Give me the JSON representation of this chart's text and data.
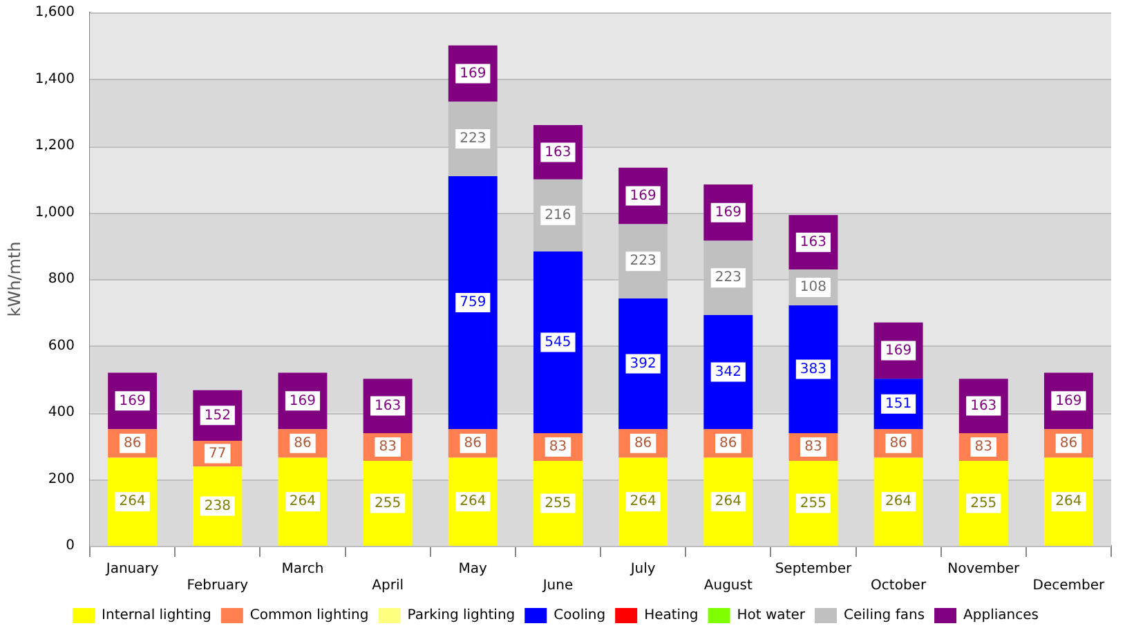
{
  "chart_data": {
    "type": "bar",
    "stacked": true,
    "ylabel": "kWh/mth",
    "categories": [
      "January",
      "February",
      "March",
      "April",
      "May",
      "June",
      "July",
      "August",
      "September",
      "October",
      "November",
      "December"
    ],
    "series": [
      {
        "name": "Internal lighting",
        "color": "#ffff00",
        "values": [
          264,
          238,
          264,
          255,
          264,
          255,
          264,
          264,
          255,
          264,
          255,
          264
        ]
      },
      {
        "name": "Common lighting",
        "color": "#ff7f50",
        "values": [
          86,
          77,
          86,
          83,
          86,
          83,
          86,
          86,
          83,
          86,
          83,
          86
        ]
      },
      {
        "name": "Parking lighting",
        "color": "#ffff80",
        "values": [
          null,
          null,
          null,
          null,
          null,
          null,
          null,
          null,
          null,
          null,
          null,
          null
        ]
      },
      {
        "name": "Cooling",
        "color": "#0000ff",
        "values": [
          null,
          null,
          null,
          null,
          759,
          545,
          392,
          342,
          383,
          151,
          null,
          null
        ]
      },
      {
        "name": "Heating",
        "color": "#ff0000",
        "values": [
          null,
          null,
          null,
          null,
          null,
          null,
          null,
          null,
          null,
          null,
          null,
          null
        ]
      },
      {
        "name": "Hot water",
        "color": "#80ff00",
        "values": [
          null,
          null,
          null,
          null,
          null,
          null,
          null,
          null,
          null,
          null,
          null,
          null
        ]
      },
      {
        "name": "Ceiling fans",
        "color": "#c0c0c0",
        "values": [
          null,
          null,
          null,
          null,
          223,
          216,
          223,
          223,
          108,
          null,
          null,
          null
        ]
      },
      {
        "name": "Appliances",
        "color": "#800080",
        "values": [
          169,
          152,
          169,
          163,
          169,
          163,
          169,
          169,
          163,
          169,
          163,
          169
        ]
      }
    ],
    "ylim": [
      0,
      1600
    ],
    "yticks": [
      0,
      {
        "value": 200,
        "label": "200"
      },
      {
        "value": 400,
        "label": "400"
      },
      {
        "value": 600,
        "label": "600"
      },
      {
        "value": 800,
        "label": "800"
      },
      {
        "value": 1000,
        "label": "1,000"
      },
      {
        "value": 1200,
        "label": "1,200"
      },
      {
        "value": 1400,
        "label": "1,400"
      },
      {
        "value": 1600,
        "label": "1,600"
      }
    ],
    "grid": true,
    "legend": "bottom",
    "data_labels": true
  }
}
